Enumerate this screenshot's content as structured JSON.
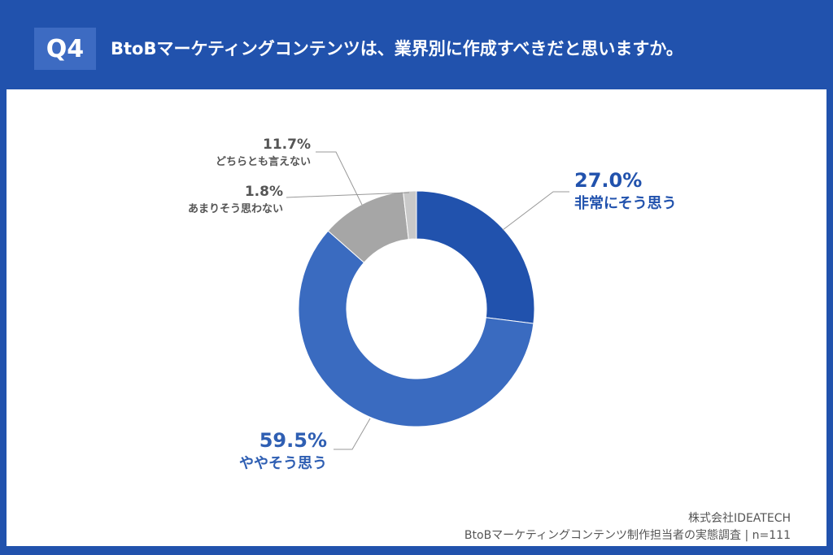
{
  "header": {
    "q_label": "Q4",
    "title": "BtoBマーケティングコンテンツは、業界別に作成すべきだと思いますか。"
  },
  "chart_data": {
    "type": "pie",
    "donut": true,
    "categories": [
      "非常にそう思う",
      "ややそう思う",
      "どちらとも言えない",
      "あまりそう思わない"
    ],
    "values": [
      27.0,
      59.5,
      11.7,
      1.8
    ],
    "value_labels": [
      "27.0%",
      "59.5%",
      "11.7%",
      "1.8%"
    ],
    "colors": [
      "#2152ad",
      "#3a6bc0",
      "#a6a6a6",
      "#c9c9c9"
    ],
    "label_colors": [
      "#2152ad",
      "#2f5fb3",
      "#555555",
      "#555555"
    ]
  },
  "footer": {
    "company": "株式会社IDEATECH",
    "survey": "BtoBマーケティングコンテンツ制作担当者の実態調査 | n=111"
  }
}
